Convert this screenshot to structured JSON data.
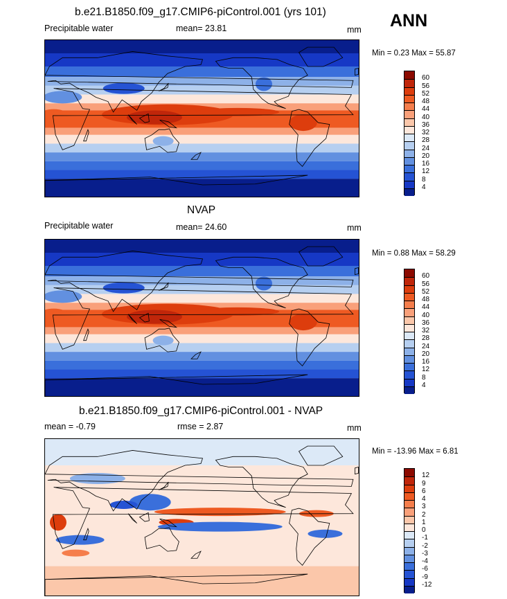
{
  "season": "ANN",
  "panels": [
    {
      "id": "model",
      "title": "b.e21.B1850.f09_g17.CMIP6-piControl.001 (yrs 101)",
      "left_label": "Precipitable water",
      "center_label": "mean=  23.81",
      "units": "mm",
      "minmax": "Min =   0.23 Max =  55.87",
      "colorbar": {
        "ticks": [
          "60",
          "56",
          "52",
          "48",
          "44",
          "40",
          "36",
          "32",
          "28",
          "24",
          "20",
          "16",
          "12",
          "8",
          "4"
        ],
        "colors": [
          "#8c0a00",
          "#c0260a",
          "#dd3d0d",
          "#ee5a22",
          "#f57e4c",
          "#f9a07a",
          "#fbc7aa",
          "#fde7db",
          "#dce9f7",
          "#b6cff0",
          "#8db1e8",
          "#6290e0",
          "#3a6fdb",
          "#2553d4",
          "#1638c5",
          "#081e8c"
        ]
      },
      "kind": "pw"
    },
    {
      "id": "obs",
      "title": "NVAP",
      "left_label": "Precipitable water",
      "center_label": "mean=  24.60",
      "units": "mm",
      "minmax": "Min =   0.88 Max =  58.29",
      "colorbar": {
        "ticks": [
          "60",
          "56",
          "52",
          "48",
          "44",
          "40",
          "36",
          "32",
          "28",
          "24",
          "20",
          "16",
          "12",
          "8",
          "4"
        ],
        "colors": [
          "#8c0a00",
          "#c0260a",
          "#dd3d0d",
          "#ee5a22",
          "#f57e4c",
          "#f9a07a",
          "#fbc7aa",
          "#fde7db",
          "#dce9f7",
          "#b6cff0",
          "#8db1e8",
          "#6290e0",
          "#3a6fdb",
          "#2553d4",
          "#1638c5",
          "#081e8c"
        ]
      },
      "kind": "pw"
    },
    {
      "id": "diff",
      "title": "b.e21.B1850.f09_g17.CMIP6-piControl.001 - NVAP",
      "left_label": "mean =  -0.79",
      "center_label": "rmse =   2.87",
      "units": "mm",
      "minmax": "Min = -13.96 Max =   6.81",
      "colorbar": {
        "ticks": [
          "12",
          "9",
          "6",
          "4",
          "3",
          "2",
          "1",
          "0",
          "-1",
          "-2",
          "-3",
          "-4",
          "-6",
          "-9",
          "-12"
        ],
        "colors": [
          "#8c0a00",
          "#c0260a",
          "#dd3d0d",
          "#ee5a22",
          "#f57e4c",
          "#f9a07a",
          "#fbc7aa",
          "#fde7db",
          "#dce9f7",
          "#b6cff0",
          "#8db1e8",
          "#6290e0",
          "#3a6fdb",
          "#2553d4",
          "#1638c5",
          "#081e8c"
        ]
      },
      "kind": "diff"
    }
  ]
}
